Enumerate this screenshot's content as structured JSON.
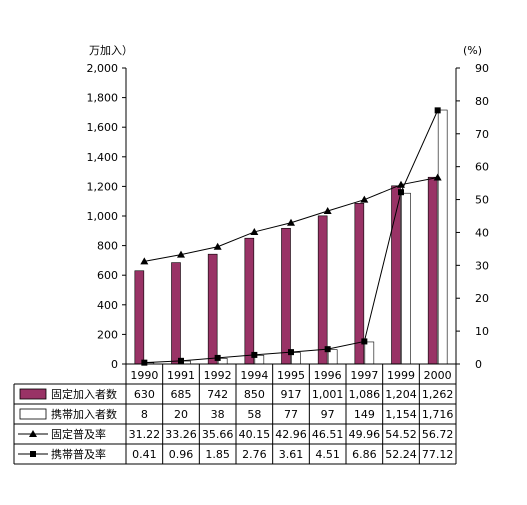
{
  "chart_data": {
    "type": "bar",
    "title": "",
    "xlabel": "",
    "y_left_unit": "万加入）",
    "y_right_unit": "(%)",
    "ylim_left": [
      0,
      2000
    ],
    "ylim_right": [
      0,
      90
    ],
    "y_left_ticks": [
      "2,000",
      "1,800",
      "1,600",
      "1,400",
      "1,200",
      "1,000",
      "800",
      "600",
      "400",
      "200",
      "0"
    ],
    "y_right_ticks": [
      "90",
      "80",
      "70",
      "60",
      "50",
      "40",
      "30",
      "20",
      "10",
      "0"
    ],
    "categories": [
      "1990",
      "1991",
      "1992",
      "1994",
      "1995",
      "1996",
      "1997",
      "1999",
      "2000"
    ],
    "series": [
      {
        "name": "固定加入者数",
        "kind": "bar",
        "axis": "left",
        "color": "#993366",
        "values": [
          630,
          685,
          742,
          850,
          917,
          1001,
          1086,
          1204,
          1262
        ],
        "labels": [
          "630",
          "685",
          "742",
          "850",
          "917",
          "1,001",
          "1,086",
          "1,204",
          "1,262"
        ]
      },
      {
        "name": "携帯加入者数",
        "kind": "bar",
        "axis": "left",
        "color": "#ffffff",
        "values": [
          8,
          20,
          38,
          58,
          77,
          97,
          149,
          1154,
          1716
        ],
        "labels": [
          "8",
          "20",
          "38",
          "58",
          "77",
          "97",
          "149",
          "1,154",
          "1,716"
        ]
      },
      {
        "name": "固定普及率",
        "kind": "line",
        "axis": "right",
        "marker": "triangle",
        "values": [
          31.22,
          33.26,
          35.66,
          40.15,
          42.96,
          46.51,
          49.96,
          54.52,
          56.72
        ],
        "labels": [
          "31.22",
          "33.26",
          "35.66",
          "40.15",
          "42.96",
          "46.51",
          "49.96",
          "54.52",
          "56.72"
        ]
      },
      {
        "name": "携帯普及率",
        "kind": "line",
        "axis": "right",
        "marker": "square",
        "values": [
          0.41,
          0.96,
          1.85,
          2.76,
          3.61,
          4.51,
          6.86,
          52.24,
          77.12
        ],
        "labels": [
          "0.41",
          "0.96",
          "1.85",
          "2.76",
          "3.61",
          "4.51",
          "6.86",
          "52.24",
          "77.12"
        ]
      }
    ],
    "grid": false,
    "legend": "data-table-below"
  }
}
